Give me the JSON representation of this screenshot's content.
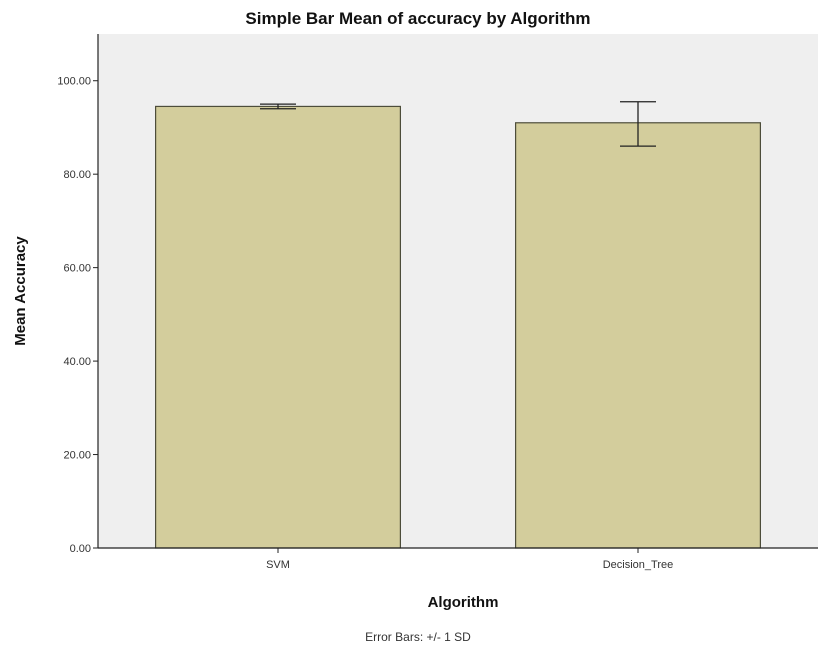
{
  "chart_data": {
    "type": "bar",
    "title": "Simple Bar Mean of accuracy by Algorithm",
    "xlabel": "Algorithm",
    "ylabel": "Mean Accuracy",
    "categories": [
      "SVM",
      "Decision_Tree"
    ],
    "values": [
      94.5,
      91.0
    ],
    "error_bars": [
      {
        "low": 94.0,
        "high": 95.0
      },
      {
        "low": 86.0,
        "high": 95.5
      }
    ],
    "error_note": "Error Bars: +/- 1 SD",
    "ylim": [
      0,
      110
    ],
    "yticks": [
      {
        "value": 0,
        "label": "0.00"
      },
      {
        "value": 20,
        "label": "20.00"
      },
      {
        "value": 40,
        "label": "40.00"
      },
      {
        "value": 60,
        "label": "60.00"
      },
      {
        "value": 80,
        "label": "80.00"
      },
      {
        "value": 100,
        "label": "100.00"
      }
    ],
    "grid": false,
    "legend": "none",
    "colors": {
      "bar_fill": "#d3cd9c",
      "bar_stroke": "#4d4d3a",
      "plot_background": "#efefef",
      "axis": "#222222",
      "error_bar": "#222222"
    }
  }
}
